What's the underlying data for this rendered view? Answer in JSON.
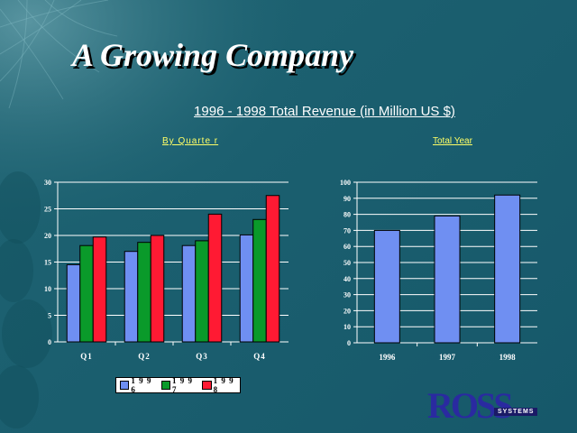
{
  "slide": {
    "title": "A Growing Company",
    "subtitle": "1996 - 1998 Total Revenue (in Million US $)",
    "by_quarter_label": "By Quarte r",
    "total_year_label": "Total Year",
    "logo_text": "ROSS",
    "logo_badge": "SYSTEMS"
  },
  "colors": {
    "1996": "#6f8ff2",
    "1997": "#0a9a2a",
    "1998": "#ff1a33",
    "total_bar": "#6f8ff2"
  },
  "chart_data": [
    {
      "type": "bar",
      "categories": [
        "Q1",
        "Q2",
        "Q3",
        "Q4"
      ],
      "series": [
        {
          "name": "1996",
          "values": [
            14.5,
            17.0,
            18.1,
            20.1
          ]
        },
        {
          "name": "1997",
          "values": [
            18.1,
            18.7,
            19.0,
            23.0
          ]
        },
        {
          "name": "1998",
          "values": [
            19.7,
            20.0,
            24.0,
            27.5
          ]
        }
      ],
      "yticks": [
        "0",
        "5",
        "10",
        "15",
        "20",
        "25",
        "30"
      ],
      "ylim": [
        0,
        30
      ],
      "legend": [
        "1 9 9 6",
        "1 9 9 7",
        "1 9 9 8"
      ],
      "legend_placement": "bottom",
      "grid": true
    },
    {
      "type": "bar",
      "categories": [
        "1996",
        "1997",
        "1998"
      ],
      "values": [
        70,
        79,
        92
      ],
      "yticks": [
        "0",
        "10",
        "20",
        "30",
        "40",
        "50",
        "60",
        "70",
        "80",
        "90",
        "100"
      ],
      "ylim": [
        0,
        100
      ],
      "grid": true
    }
  ]
}
